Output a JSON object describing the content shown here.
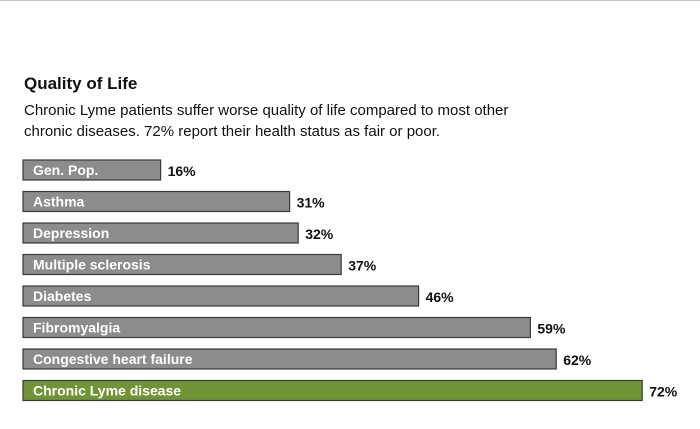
{
  "chart_data": {
    "type": "bar",
    "orientation": "horizontal",
    "title": "Quality of Life",
    "subtitle_lines": [
      "Chronic Lyme patients suffer worse quality of life compared to most other",
      "chronic diseases. 72% report their health status as fair or poor."
    ],
    "categories": [
      "Gen. Pop.",
      "Asthma",
      "Depression",
      "Multiple sclerosis",
      "Diabetes",
      "Fibromyalgia",
      "Congestive heart failure",
      "Chronic Lyme disease"
    ],
    "values": [
      16,
      31,
      32,
      37,
      46,
      59,
      62,
      72
    ],
    "value_labels": [
      "16%",
      "31%",
      "32%",
      "37%",
      "46%",
      "59%",
      "62%",
      "72%"
    ],
    "unit": "%",
    "grid": false,
    "legend": "none",
    "colors": {
      "default_bar": "#8c8c8c",
      "highlight_bar": "#6f9435",
      "bar_border": "#3a3a3a"
    },
    "highlight_index": 7
  }
}
